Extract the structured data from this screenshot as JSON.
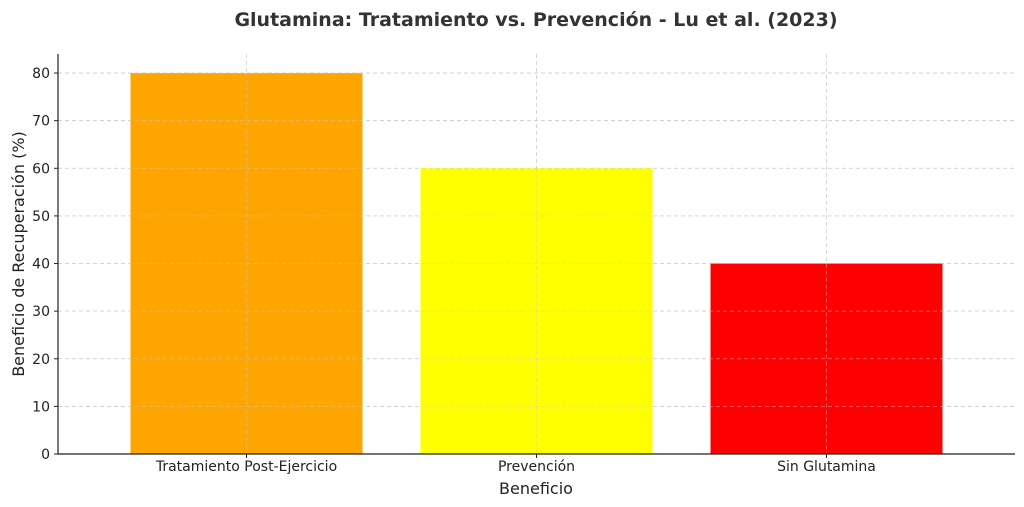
{
  "chart_data": {
    "type": "bar",
    "title": "Glutamina: Tratamiento vs. Prevención - Lu et al. (2023)",
    "xlabel": "Beneficio",
    "ylabel": "Beneficio de Recuperación (%)",
    "categories": [
      "Tratamiento Post-Ejercicio",
      "Prevención",
      "Sin Glutamina"
    ],
    "values": [
      80,
      60,
      40
    ],
    "colors": [
      "#FFA500",
      "#FFFF00",
      "#FF0000"
    ],
    "ylim": [
      0,
      84
    ],
    "yticks": [
      0,
      10,
      20,
      30,
      40,
      50,
      60,
      70,
      80
    ],
    "grid": true
  }
}
